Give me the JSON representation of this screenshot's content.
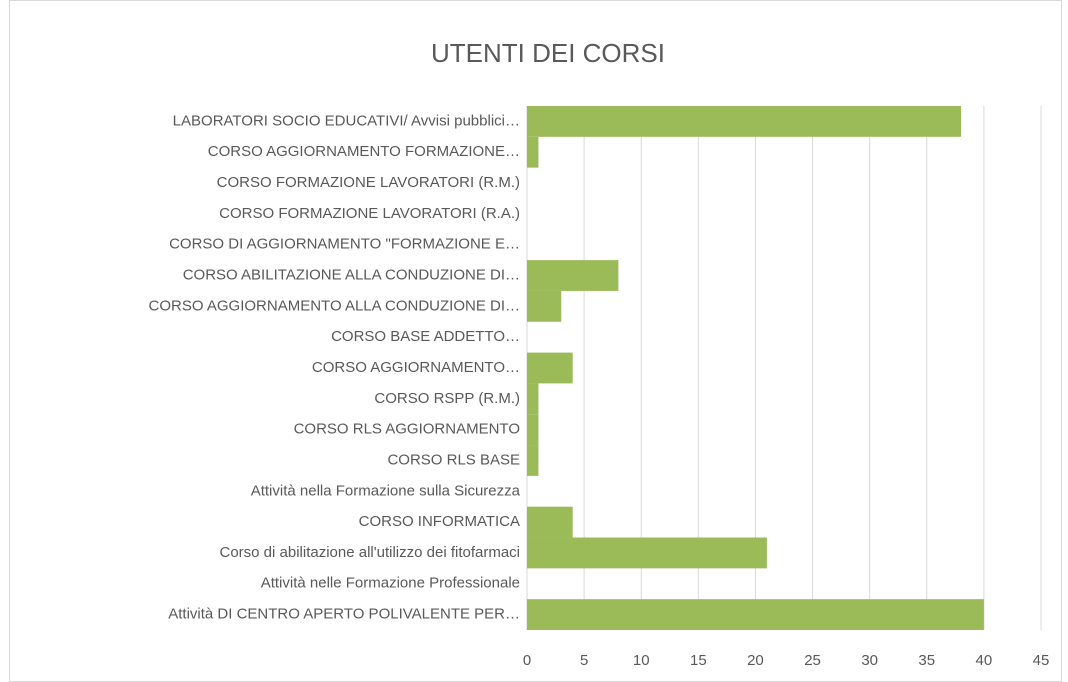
{
  "chart_data": {
    "type": "barh",
    "title": "UTENTI DEI CORSI",
    "categories": [
      "LABORATORI SOCIO EDUCATIVI/ Avvisi pubblici…",
      "CORSO AGGIORNAMENTO FORMAZIONE…",
      "CORSO FORMAZIONE LAVORATORI  (R.M.)",
      "CORSO FORMAZIONE LAVORATORI  (R.A.)",
      "CORSO DI AGGIORNAMENTO \"FORMAZIONE E…",
      "CORSO ABILITAZIONE ALLA CONDUZIONE DI…",
      "CORSO AGGIORNAMENTO ALLA CONDUZIONE DI…",
      "CORSO BASE ADDETTO…",
      "CORSO AGGIORNAMENTO…",
      "CORSO RSPP (R.M.)",
      "CORSO RLS AGGIORNAMENTO",
      "CORSO RLS BASE",
      "Attività nella Formazione sulla Sicurezza",
      "CORSO INFORMATICA",
      "Corso di abilitazione all'utilizzo dei fitofarmaci",
      "Attività nelle Formazione Professionale",
      "Attività DI CENTRO APERTO POLIVALENTE PER…"
    ],
    "values": [
      38,
      1,
      0,
      0,
      0,
      8,
      3,
      0,
      4,
      1,
      1,
      1,
      0,
      4,
      21,
      0,
      40
    ],
    "color": "#9bbb59",
    "xlim": [
      0,
      45
    ],
    "xticks": [
      0,
      5,
      10,
      15,
      20,
      25,
      30,
      35,
      40,
      45
    ],
    "grid": true
  }
}
